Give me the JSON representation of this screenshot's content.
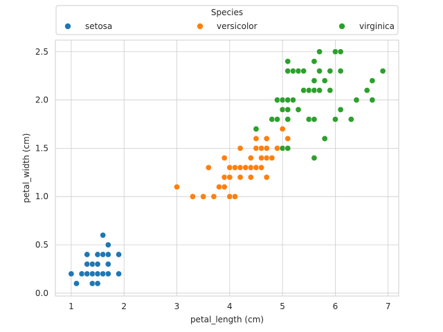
{
  "chart_data": {
    "type": "scatter",
    "xlabel": "petal_length (cm)",
    "ylabel": "petal_width (cm)",
    "xlim": [
      0.7,
      7.2
    ],
    "ylim": [
      -0.03,
      2.62
    ],
    "xticks": [
      1,
      2,
      3,
      4,
      5,
      6,
      7
    ],
    "xtick_labels": [
      "1",
      "2",
      "3",
      "4",
      "5",
      "6",
      "7"
    ],
    "yticks": [
      0.0,
      0.5,
      1.0,
      1.5,
      2.0,
      2.5
    ],
    "ytick_labels": [
      "0.0",
      "0.5",
      "1.0",
      "1.5",
      "2.0",
      "2.5"
    ],
    "grid": true,
    "legend": {
      "title": "Species",
      "placement": "top, above plot, 3 columns",
      "entries": [
        "setosa",
        "versicolor",
        "virginica"
      ]
    },
    "series": [
      {
        "name": "setosa",
        "color": "#1f77b4",
        "points": [
          [
            1.0,
            0.2
          ],
          [
            1.1,
            0.1
          ],
          [
            1.2,
            0.2
          ],
          [
            1.3,
            0.2
          ],
          [
            1.3,
            0.3
          ],
          [
            1.3,
            0.4
          ],
          [
            1.4,
            0.1
          ],
          [
            1.4,
            0.2
          ],
          [
            1.4,
            0.3
          ],
          [
            1.5,
            0.1
          ],
          [
            1.5,
            0.2
          ],
          [
            1.5,
            0.3
          ],
          [
            1.5,
            0.4
          ],
          [
            1.6,
            0.2
          ],
          [
            1.6,
            0.4
          ],
          [
            1.6,
            0.6
          ],
          [
            1.7,
            0.2
          ],
          [
            1.7,
            0.3
          ],
          [
            1.7,
            0.4
          ],
          [
            1.7,
            0.5
          ],
          [
            1.9,
            0.2
          ],
          [
            1.9,
            0.4
          ]
        ]
      },
      {
        "name": "versicolor",
        "color": "#ff7f0e",
        "points": [
          [
            3.0,
            1.1
          ],
          [
            3.3,
            1.0
          ],
          [
            3.5,
            1.0
          ],
          [
            3.6,
            1.3
          ],
          [
            3.7,
            1.0
          ],
          [
            3.8,
            1.1
          ],
          [
            3.9,
            1.1
          ],
          [
            3.9,
            1.2
          ],
          [
            3.9,
            1.4
          ],
          [
            4.0,
            1.0
          ],
          [
            4.0,
            1.2
          ],
          [
            4.0,
            1.3
          ],
          [
            4.1,
            1.0
          ],
          [
            4.1,
            1.3
          ],
          [
            4.2,
            1.2
          ],
          [
            4.2,
            1.3
          ],
          [
            4.2,
            1.5
          ],
          [
            4.3,
            1.3
          ],
          [
            4.4,
            1.2
          ],
          [
            4.4,
            1.3
          ],
          [
            4.4,
            1.4
          ],
          [
            4.5,
            1.3
          ],
          [
            4.5,
            1.5
          ],
          [
            4.5,
            1.6
          ],
          [
            4.6,
            1.3
          ],
          [
            4.6,
            1.4
          ],
          [
            4.6,
            1.5
          ],
          [
            4.7,
            1.2
          ],
          [
            4.7,
            1.4
          ],
          [
            4.7,
            1.5
          ],
          [
            4.7,
            1.6
          ],
          [
            4.8,
            1.4
          ],
          [
            4.8,
            1.8
          ],
          [
            4.9,
            1.5
          ],
          [
            5.0,
            1.7
          ],
          [
            5.1,
            1.6
          ]
        ]
      },
      {
        "name": "virginica",
        "color": "#2ca02c",
        "points": [
          [
            4.5,
            1.7
          ],
          [
            4.8,
            1.8
          ],
          [
            4.9,
            1.8
          ],
          [
            4.9,
            2.0
          ],
          [
            5.0,
            1.5
          ],
          [
            5.0,
            1.9
          ],
          [
            5.0,
            2.0
          ],
          [
            5.1,
            1.5
          ],
          [
            5.1,
            1.8
          ],
          [
            5.1,
            1.9
          ],
          [
            5.1,
            2.0
          ],
          [
            5.1,
            2.3
          ],
          [
            5.1,
            2.4
          ],
          [
            5.2,
            2.0
          ],
          [
            5.2,
            2.3
          ],
          [
            5.3,
            1.9
          ],
          [
            5.3,
            2.3
          ],
          [
            5.4,
            2.1
          ],
          [
            5.4,
            2.3
          ],
          [
            5.5,
            1.8
          ],
          [
            5.5,
            2.1
          ],
          [
            5.6,
            1.4
          ],
          [
            5.6,
            1.8
          ],
          [
            5.6,
            2.1
          ],
          [
            5.6,
            2.2
          ],
          [
            5.6,
            2.4
          ],
          [
            5.7,
            2.1
          ],
          [
            5.7,
            2.3
          ],
          [
            5.7,
            2.5
          ],
          [
            5.8,
            1.6
          ],
          [
            5.8,
            2.2
          ],
          [
            5.9,
            2.1
          ],
          [
            5.9,
            2.3
          ],
          [
            6.0,
            1.8
          ],
          [
            6.0,
            2.5
          ],
          [
            6.1,
            1.9
          ],
          [
            6.1,
            2.3
          ],
          [
            6.1,
            2.5
          ],
          [
            6.3,
            1.8
          ],
          [
            6.4,
            2.0
          ],
          [
            6.6,
            2.1
          ],
          [
            6.7,
            2.0
          ],
          [
            6.7,
            2.2
          ],
          [
            6.9,
            2.3
          ]
        ]
      }
    ]
  }
}
